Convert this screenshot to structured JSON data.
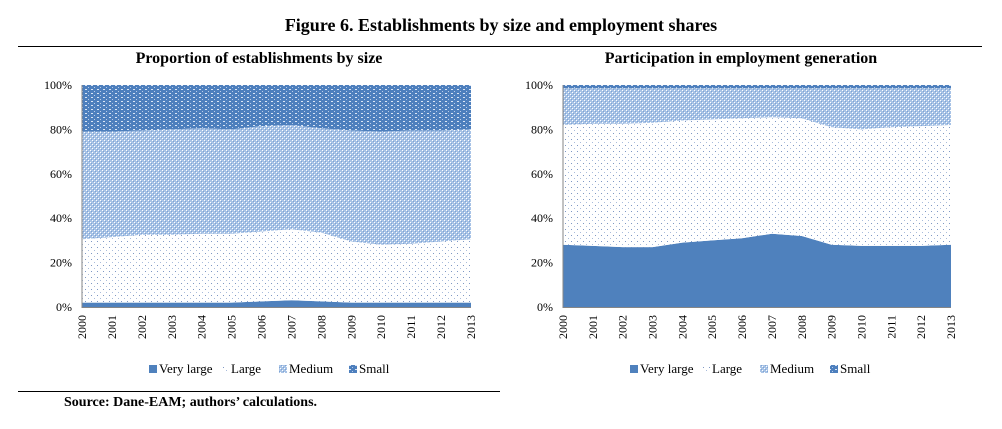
{
  "figure": {
    "title": "Figure 6. Establishments by size and employment shares",
    "source": "Source: Dane-EAM; authors’ calculations."
  },
  "colors": {
    "very_large": "#4f81bd",
    "large_dot": "#6f8fc0",
    "medium_fill": "#9dbde4",
    "small_fill": "#4a7ab8"
  },
  "chart_data": [
    {
      "type": "area",
      "stacked": true,
      "title": "Proportion of establishments by size",
      "xlabel": "",
      "ylabel": "",
      "ylim": [
        0,
        100
      ],
      "y_ticks": [
        "0%",
        "20%",
        "40%",
        "60%",
        "80%",
        "100%"
      ],
      "categories": [
        "2000",
        "2001",
        "2002",
        "2003",
        "2004",
        "2005",
        "2006",
        "2007",
        "2008",
        "2009",
        "2010",
        "2011",
        "2012",
        "2013"
      ],
      "legend": {
        "position": "bottom",
        "entries": [
          "Very large",
          "Large",
          "Medium",
          "Small"
        ]
      },
      "series": [
        {
          "name": "Very large",
          "values": [
            2,
            2,
            2,
            2,
            2,
            2,
            2.5,
            3,
            2.5,
            2,
            2,
            2,
            2,
            2
          ]
        },
        {
          "name": "Large",
          "values": [
            28.5,
            29.5,
            30.5,
            30.5,
            31,
            31,
            31.5,
            32,
            31,
            27.5,
            26,
            26.5,
            27.5,
            28.5
          ]
        },
        {
          "name": "Medium",
          "values": [
            48.5,
            47.5,
            47,
            47.5,
            47.5,
            47,
            47.5,
            47,
            47,
            50,
            51,
            51,
            50,
            49.5
          ]
        },
        {
          "name": "Small",
          "values": [
            21,
            21,
            20.5,
            20,
            19.5,
            20,
            18.5,
            18,
            19.5,
            20.5,
            21,
            20.5,
            20.5,
            20
          ]
        }
      ]
    },
    {
      "type": "area",
      "stacked": true,
      "title": "Participation in employment generation",
      "xlabel": "",
      "ylabel": "",
      "ylim": [
        0,
        100
      ],
      "y_ticks": [
        "0%",
        "20%",
        "40%",
        "60%",
        "80%",
        "100%"
      ],
      "categories": [
        "2000",
        "2001",
        "2002",
        "2003",
        "2004",
        "2005",
        "2006",
        "2007",
        "2008",
        "2009",
        "2010",
        "2011",
        "2012",
        "2013"
      ],
      "legend": {
        "position": "bottom",
        "entries": [
          "Very large",
          "Large",
          "Medium",
          "Small"
        ]
      },
      "series": [
        {
          "name": "Very large",
          "values": [
            28,
            27.5,
            27,
            27,
            29,
            30,
            31,
            33,
            32,
            28,
            27.5,
            27.5,
            27.5,
            28
          ]
        },
        {
          "name": "Large",
          "values": [
            54,
            55,
            55.5,
            56,
            55,
            54.5,
            54,
            52.5,
            53,
            53,
            52.5,
            53.5,
            54,
            54
          ]
        },
        {
          "name": "Medium",
          "values": [
            16.5,
            16,
            16,
            15.5,
            14.5,
            14,
            13.5,
            13,
            13.5,
            17.5,
            18.5,
            17.5,
            17,
            16.5
          ]
        },
        {
          "name": "Small",
          "values": [
            1.5,
            1.5,
            1.5,
            1.5,
            1.5,
            1.5,
            1.5,
            1.5,
            1.5,
            1.5,
            1.5,
            1.5,
            1.5,
            1.5
          ]
        }
      ]
    }
  ]
}
